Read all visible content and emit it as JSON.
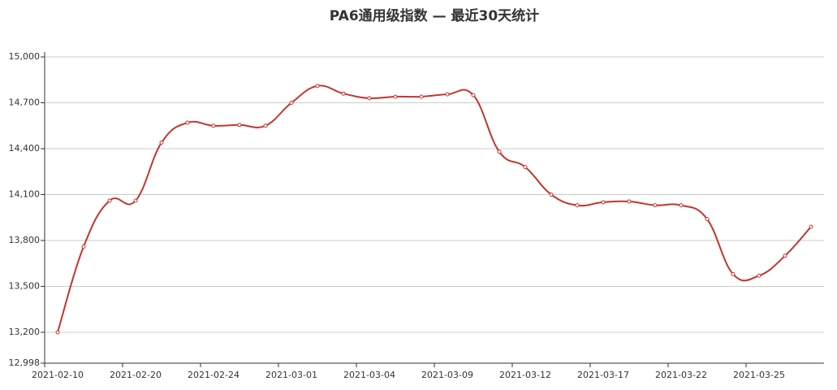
{
  "chart_data": {
    "type": "line",
    "title": "PA6通用级指数  —  最近30天统计",
    "categories": [
      "2021-02-10",
      null,
      null,
      "2021-02-20",
      null,
      null,
      "2021-02-24",
      null,
      null,
      "2021-03-01",
      null,
      null,
      "2021-03-04",
      null,
      null,
      "2021-03-09",
      null,
      null,
      "2021-03-12",
      null,
      null,
      "2021-03-17",
      null,
      null,
      "2021-03-22",
      null,
      null,
      "2021-03-25",
      null,
      null
    ],
    "series": [
      {
        "color": "#c23531",
        "values": [
          13200,
          13760,
          14060,
          14060,
          14440,
          14570,
          14550,
          14555,
          14550,
          14700,
          14810,
          14760,
          14730,
          14740,
          14740,
          14755,
          14750,
          14380,
          14280,
          14100,
          14030,
          14050,
          14055,
          14030,
          14030,
          13940,
          13580,
          13570,
          13700,
          13890
        ]
      }
    ],
    "ylim": [
      12998,
      15000
    ],
    "yticks": [
      {
        "value": 12998,
        "label": "12,998"
      },
      {
        "value": 13200,
        "label": "13,200"
      },
      {
        "value": 13500,
        "label": "13,500"
      },
      {
        "value": 13800,
        "label": "13,800"
      },
      {
        "value": 14100,
        "label": "14,100"
      },
      {
        "value": 14400,
        "label": "14,400"
      },
      {
        "value": 14700,
        "label": "14,700"
      },
      {
        "value": 15000,
        "label": "15,000"
      }
    ],
    "grid": true
  }
}
